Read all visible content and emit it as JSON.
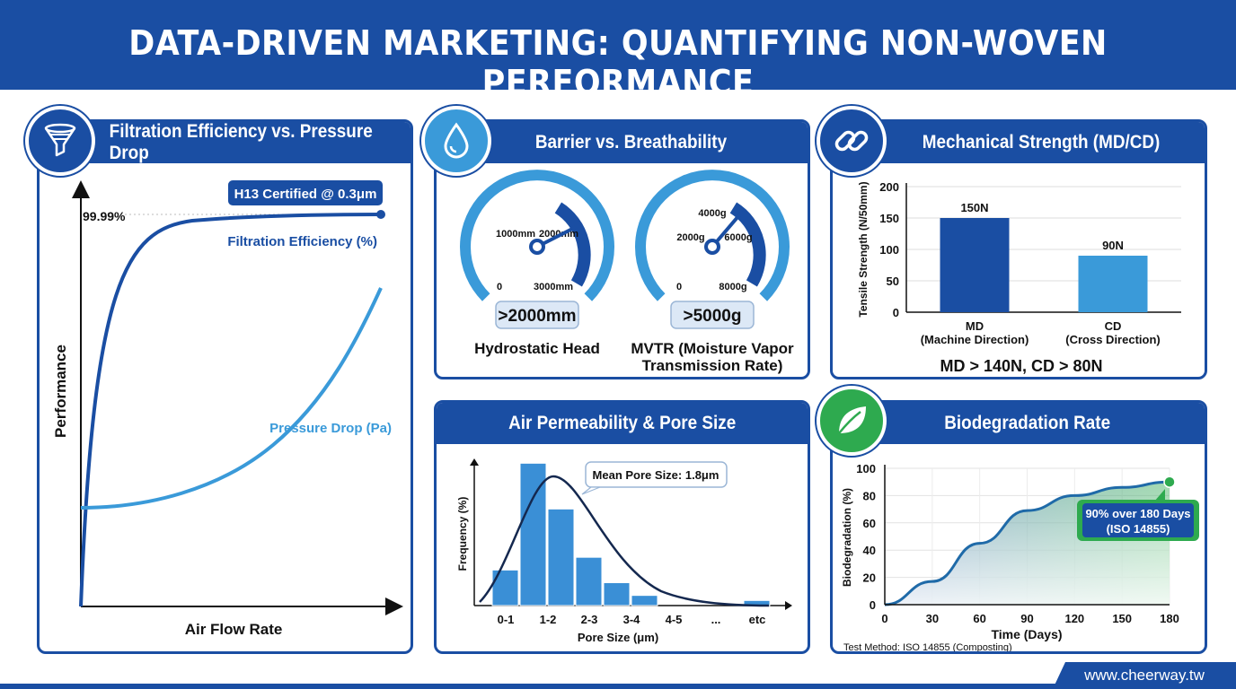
{
  "title": "DATA-DRIVEN MARKETING: QUANTIFYING NON-WOVEN PERFORMANCE",
  "colors": {
    "primary": "#1a4ea3",
    "light": "#3a9ad9",
    "green": "#2eaa4f"
  },
  "filtration": {
    "header": "Filtration Efficiency vs. Pressure Drop",
    "icon": "funnel-icon",
    "callout": "H13 Certified @ 0.3μm",
    "value_label": "99.99%",
    "efficiency_label": "Filtration Efficiency (%)",
    "pressure_label": "Pressure Drop (Pa)",
    "ylabel": "Performance",
    "xlabel": "Air Flow Rate"
  },
  "barrier": {
    "header": "Barrier vs. Breathability",
    "icon": "water-drop-icon",
    "gauge1": {
      "ticks": [
        "0",
        "1000mm",
        "2000mm",
        "3000mm"
      ],
      "value": ">2000mm",
      "label": "Hydrostatic Head",
      "min": 0,
      "max": 3000,
      "reading": 2200
    },
    "gauge2": {
      "ticks": [
        "0",
        "2000g",
        "4000g",
        "6000g",
        "8000g"
      ],
      "value": ">5000g",
      "label1": "MVTR (Moisture Vapor",
      "label2": "Transmission Rate)",
      "min": 0,
      "max": 8000,
      "reading": 5200
    }
  },
  "mechanical": {
    "header": "Mechanical Strength (MD/CD)",
    "icon": "chain-link-icon",
    "summary": "MD > 140N, CD > 80N"
  },
  "air": {
    "header": "Air Permeability & Pore Size",
    "callout": "Mean Pore Size: 1.8μm"
  },
  "bio": {
    "header": "Biodegradation Rate",
    "icon": "leaf-icon",
    "callout1": "90% over 180 Days",
    "callout2": "(ISO 14855)",
    "note": "Test Method: ISO 14855 (Composting)"
  },
  "footer": {
    "url": "www.cheerway.tw"
  },
  "chart_data": [
    {
      "type": "line",
      "title": "Filtration Efficiency vs. Pressure Drop",
      "xlabel": "Air Flow Rate",
      "ylabel": "Performance",
      "series": [
        {
          "name": "Filtration Efficiency (%)",
          "shape": "rapid rise then plateau at 99.99%"
        },
        {
          "name": "Pressure Drop (Pa)",
          "shape": "increasing convex curve"
        }
      ],
      "annotation": "H13 Certified @ 0.3μm"
    },
    {
      "type": "bar",
      "title": "Mechanical Strength (MD/CD)",
      "categories": [
        "MD",
        "CD"
      ],
      "category_sublabels": [
        "(Machine Direction)",
        "(Cross Direction)"
      ],
      "values": [
        150,
        90
      ],
      "value_labels": [
        "150N",
        "90N"
      ],
      "ylabel": "Tensile Strength (N/50mm)",
      "yticks": [
        "0",
        "50",
        "100",
        "150",
        "200"
      ],
      "ylim": [
        0,
        200
      ]
    },
    {
      "type": "bar",
      "title": "Air Permeability & Pore Size",
      "categories": [
        "0-1",
        "1-2",
        "2-3",
        "3-4",
        "4-5",
        "...",
        "etc"
      ],
      "values": [
        14,
        56,
        38,
        19,
        9,
        4,
        2
      ],
      "xlabel": "Pore Size (μm)",
      "ylabel": "Frequency (%)",
      "overlay": "normal distribution curve"
    },
    {
      "type": "area",
      "title": "Biodegradation Rate",
      "x": [
        0,
        30,
        60,
        90,
        120,
        150,
        180
      ],
      "values": [
        0,
        17,
        45,
        69,
        80,
        86,
        90
      ],
      "xlabel": "Time (Days)",
      "ylabel": "Biodegradation (%)",
      "xticks": [
        "0",
        "30",
        "60",
        "90",
        "120",
        "150",
        "180"
      ],
      "yticks": [
        "0",
        "20",
        "40",
        "60",
        "80",
        "100"
      ],
      "ylim": [
        0,
        100
      ]
    }
  ]
}
